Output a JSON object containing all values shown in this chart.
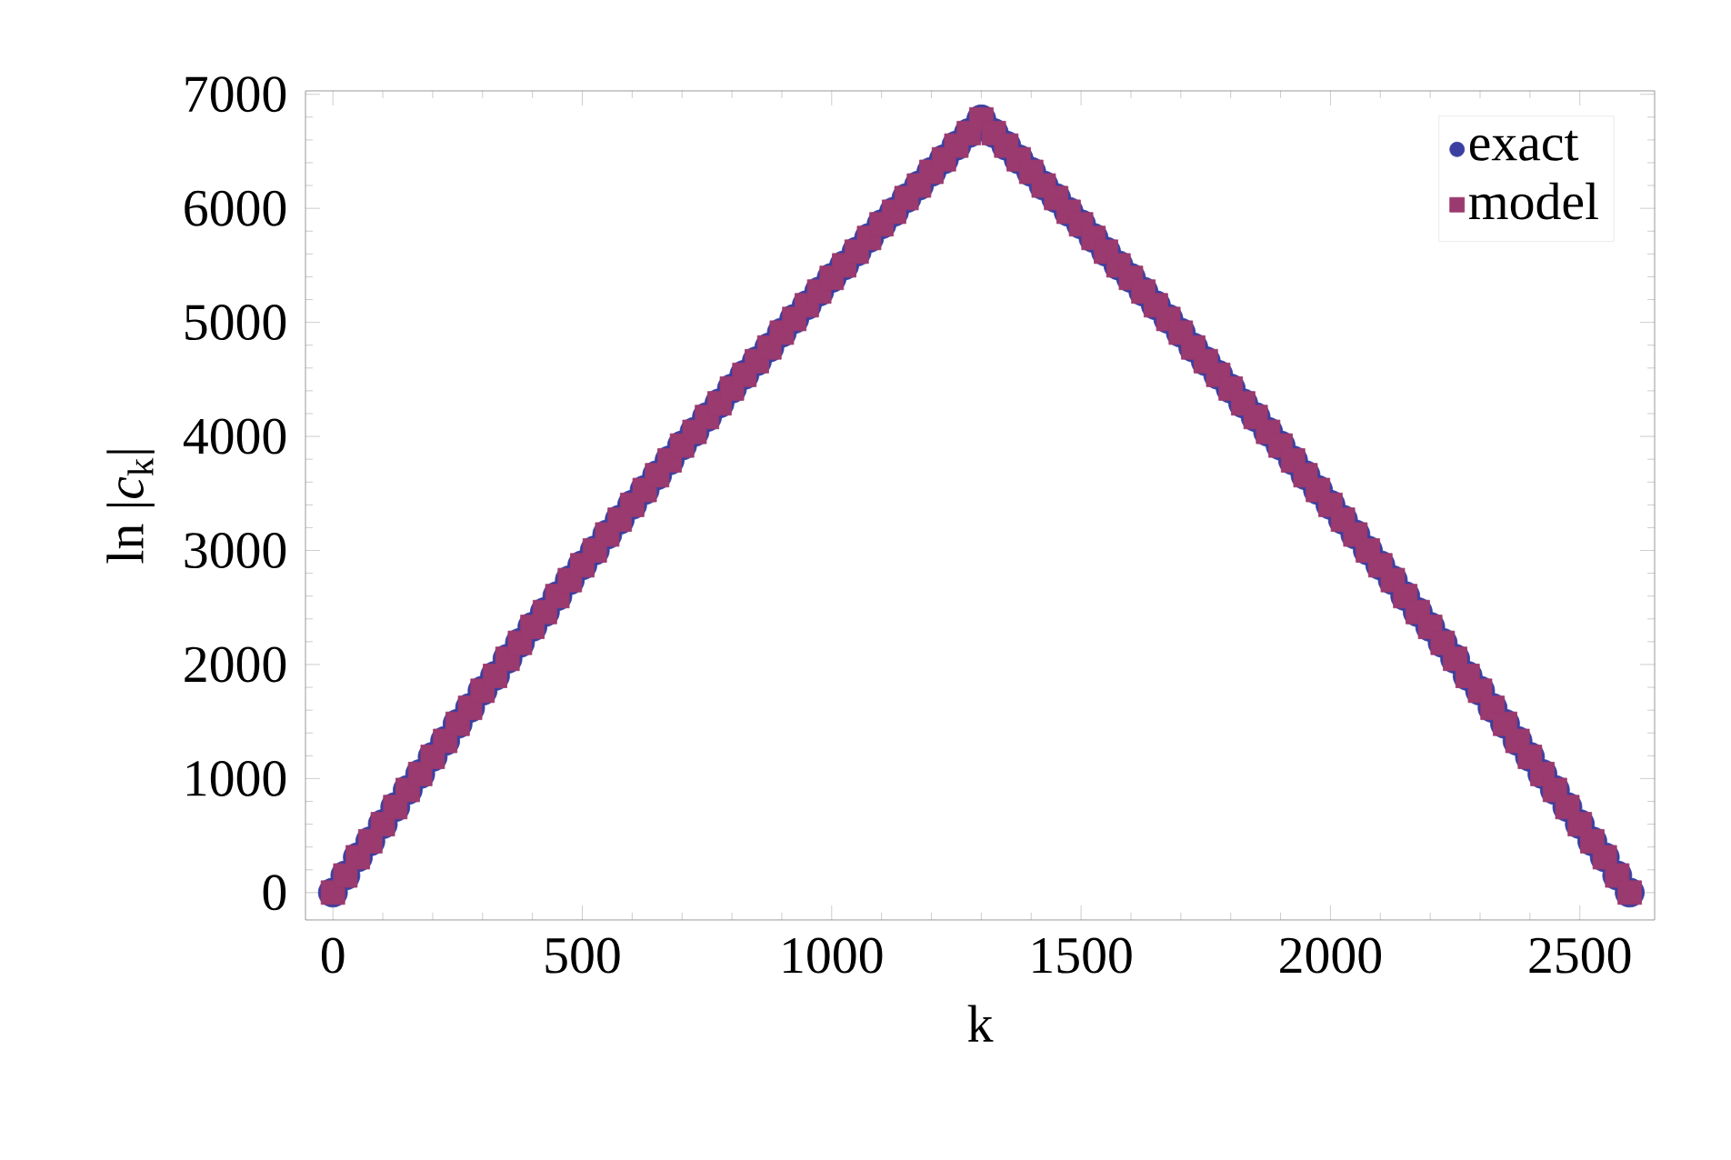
{
  "chart_data": {
    "type": "scatter",
    "xlabel": "k",
    "ylabel": "ln |*c*$_{k}$|",
    "x": [
      0,
      25,
      50,
      75,
      100,
      125,
      150,
      175,
      200,
      225,
      250,
      275,
      300,
      325,
      350,
      375,
      400,
      425,
      450,
      475,
      500,
      525,
      550,
      575,
      600,
      625,
      650,
      675,
      700,
      725,
      750,
      775,
      800,
      825,
      850,
      875,
      900,
      925,
      950,
      975,
      1000,
      1025,
      1050,
      1075,
      1100,
      1125,
      1150,
      1175,
      1200,
      1225,
      1250,
      1275,
      1300,
      1325,
      1350,
      1375,
      1400,
      1425,
      1450,
      1475,
      1500,
      1525,
      1550,
      1575,
      1600,
      1625,
      1650,
      1675,
      1700,
      1725,
      1750,
      1775,
      1800,
      1825,
      1850,
      1875,
      1900,
      1925,
      1950,
      1975,
      2000,
      2025,
      2050,
      2075,
      2100,
      2125,
      2150,
      2175,
      2200,
      2225,
      2250,
      2275,
      2300,
      2325,
      2350,
      2375,
      2400,
      2425,
      2450,
      2475,
      2500,
      2525,
      2550,
      2575,
      2600
    ],
    "series": [
      {
        "name": "exact",
        "color": "#3a3fa0",
        "marker": "circle",
        "values": [
          0,
          150,
          310,
          450,
          600,
          750,
          900,
          1040,
          1190,
          1330,
          1480,
          1620,
          1770,
          1900,
          2050,
          2190,
          2330,
          2460,
          2600,
          2740,
          2870,
          3000,
          3140,
          3270,
          3400,
          3530,
          3660,
          3790,
          3920,
          4040,
          4170,
          4290,
          4420,
          4540,
          4660,
          4780,
          4910,
          5030,
          5150,
          5270,
          5390,
          5500,
          5620,
          5740,
          5860,
          5970,
          6090,
          6200,
          6320,
          6430,
          6550,
          6660,
          6780,
          6660,
          6550,
          6430,
          6320,
          6200,
          6090,
          5970,
          5860,
          5740,
          5620,
          5500,
          5390,
          5270,
          5150,
          5030,
          4910,
          4780,
          4660,
          4540,
          4420,
          4290,
          4170,
          4040,
          3920,
          3790,
          3660,
          3530,
          3400,
          3270,
          3140,
          3000,
          2870,
          2740,
          2600,
          2460,
          2330,
          2190,
          2050,
          1900,
          1770,
          1620,
          1480,
          1330,
          1190,
          1040,
          900,
          750,
          600,
          450,
          310,
          150,
          0
        ]
      },
      {
        "name": "model",
        "color": "#9a3a6e",
        "marker": "square",
        "values": [
          0,
          150,
          310,
          450,
          600,
          750,
          900,
          1040,
          1190,
          1330,
          1480,
          1620,
          1770,
          1900,
          2050,
          2190,
          2330,
          2460,
          2600,
          2740,
          2870,
          3000,
          3140,
          3270,
          3400,
          3530,
          3660,
          3790,
          3920,
          4040,
          4170,
          4290,
          4420,
          4540,
          4660,
          4780,
          4910,
          5030,
          5150,
          5270,
          5390,
          5500,
          5620,
          5740,
          5860,
          5970,
          6090,
          6200,
          6320,
          6430,
          6550,
          6660,
          6780,
          6660,
          6550,
          6430,
          6320,
          6200,
          6090,
          5970,
          5860,
          5740,
          5620,
          5500,
          5390,
          5270,
          5150,
          5030,
          4910,
          4780,
          4660,
          4540,
          4420,
          4290,
          4170,
          4040,
          3920,
          3790,
          3660,
          3530,
          3400,
          3270,
          3140,
          3000,
          2870,
          2740,
          2600,
          2460,
          2330,
          2190,
          2050,
          1900,
          1770,
          1620,
          1480,
          1330,
          1190,
          1040,
          900,
          750,
          600,
          450,
          310,
          150,
          0
        ]
      }
    ],
    "xlim": [
      -55,
      2650
    ],
    "ylim": [
      -240,
      7030
    ],
    "xticks": [
      0,
      500,
      1000,
      1500,
      2000,
      2500
    ],
    "yticks": [
      0,
      1000,
      2000,
      3000,
      4000,
      5000,
      6000,
      7000
    ],
    "grid": false,
    "legend": "top right"
  }
}
